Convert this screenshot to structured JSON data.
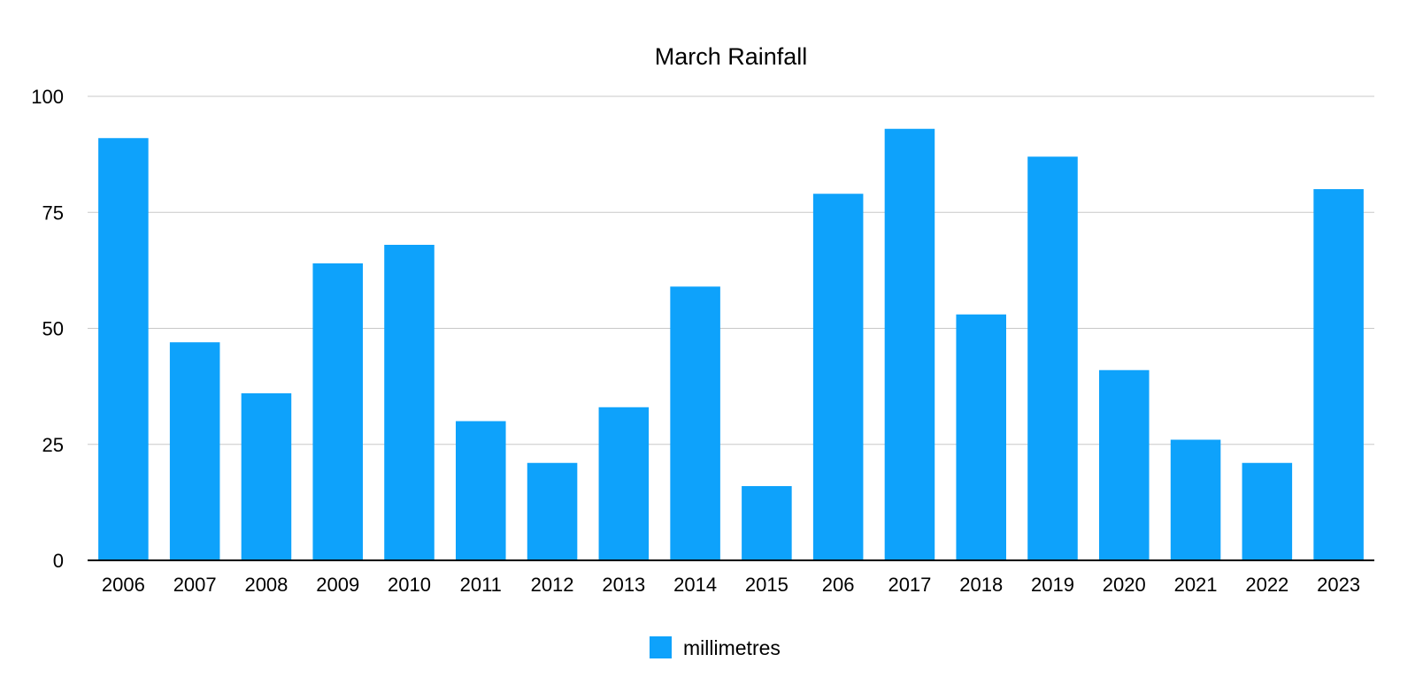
{
  "chart_data": {
    "type": "bar",
    "title": "March Rainfall",
    "xlabel": "",
    "ylabel": "",
    "categories": [
      "2006",
      "2007",
      "2008",
      "2009",
      "2010",
      "2011",
      "2012",
      "2013",
      "2014",
      "2015",
      "206",
      "2017",
      "2018",
      "2019",
      "2020",
      "2021",
      "2022",
      "2023"
    ],
    "series": [
      {
        "name": "millimetres",
        "color": "#0ea2fb",
        "values": [
          91,
          47,
          36,
          64,
          68,
          30,
          21,
          33,
          59,
          16,
          79,
          93,
          53,
          87,
          41,
          26,
          21,
          80
        ]
      }
    ],
    "ylim": [
      0,
      100
    ],
    "yticks": [
      0,
      25,
      50,
      75,
      100
    ],
    "grid": true,
    "legend_position": "bottom-center"
  }
}
